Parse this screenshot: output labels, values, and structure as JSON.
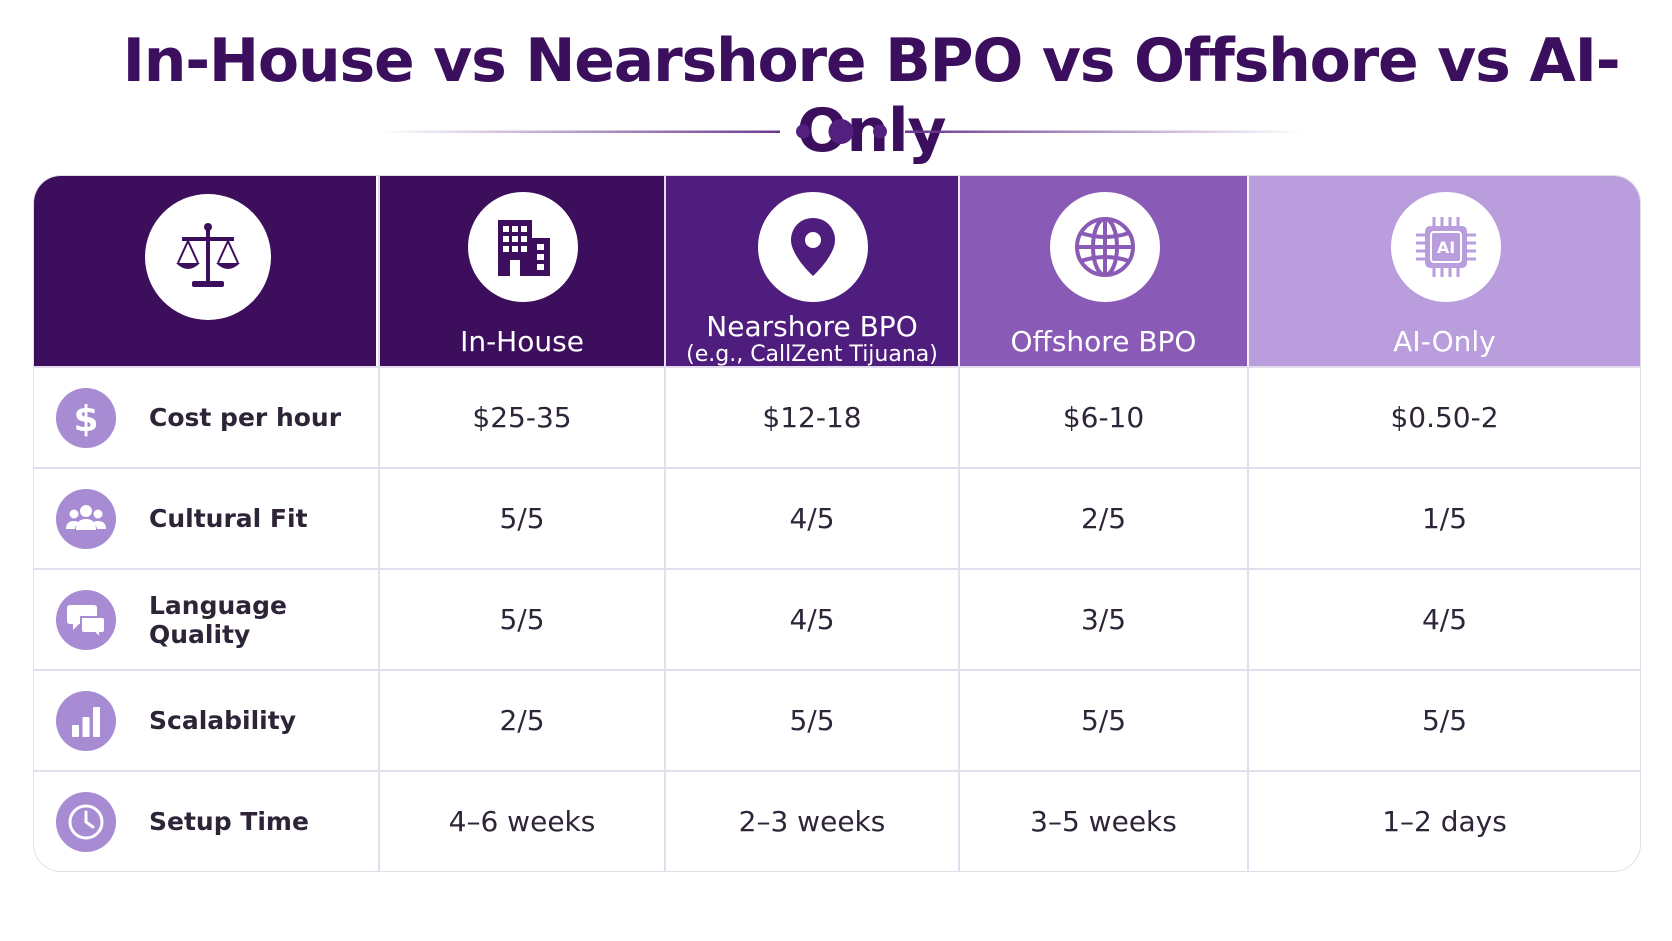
{
  "chart_data": {
    "type": "table",
    "title": "In-House vs Nearshore BPO vs Offshore vs AI-Only",
    "columns": [
      {
        "label": "In-House",
        "sublabel": "",
        "icon": "building-icon",
        "color": "#3c0e5c"
      },
      {
        "label": "Nearshore BPO",
        "sublabel": "(e.g., CallZent Tijuana)",
        "icon": "location-pin-icon",
        "color": "#4f1d7e"
      },
      {
        "label": "Offshore BPO",
        "sublabel": "",
        "icon": "globe-icon",
        "color": "#8a5bb6"
      },
      {
        "label": "AI-Only",
        "sublabel": "",
        "icon": "ai-chip-icon",
        "color": "#b99ddd"
      }
    ],
    "corner_icon": "scales-icon",
    "corner_color": "#3c0e5c",
    "row_icon_color": "#a78bd3",
    "rows": [
      {
        "label": "Cost per hour",
        "icon": "dollar-icon",
        "values": [
          "$25-35",
          "$12-18",
          "$6-10",
          "$0.50-2"
        ]
      },
      {
        "label": "Cultural Fit",
        "icon": "people-icon",
        "values": [
          "5/5",
          "4/5",
          "2/5",
          "1/5"
        ]
      },
      {
        "label": "Language Quality",
        "icon": "chat-bubbles-icon",
        "values": [
          "5/5",
          "4/5",
          "3/5",
          "4/5"
        ]
      },
      {
        "label": "Scalability",
        "icon": "bar-chart-icon",
        "values": [
          "2/5",
          "5/5",
          "5/5",
          "5/5"
        ]
      },
      {
        "label": "Setup Time",
        "icon": "clock-icon",
        "values": [
          "4–6 weeks",
          "2–3 weeks",
          "3–5 weeks",
          "1–2 days"
        ]
      }
    ]
  }
}
